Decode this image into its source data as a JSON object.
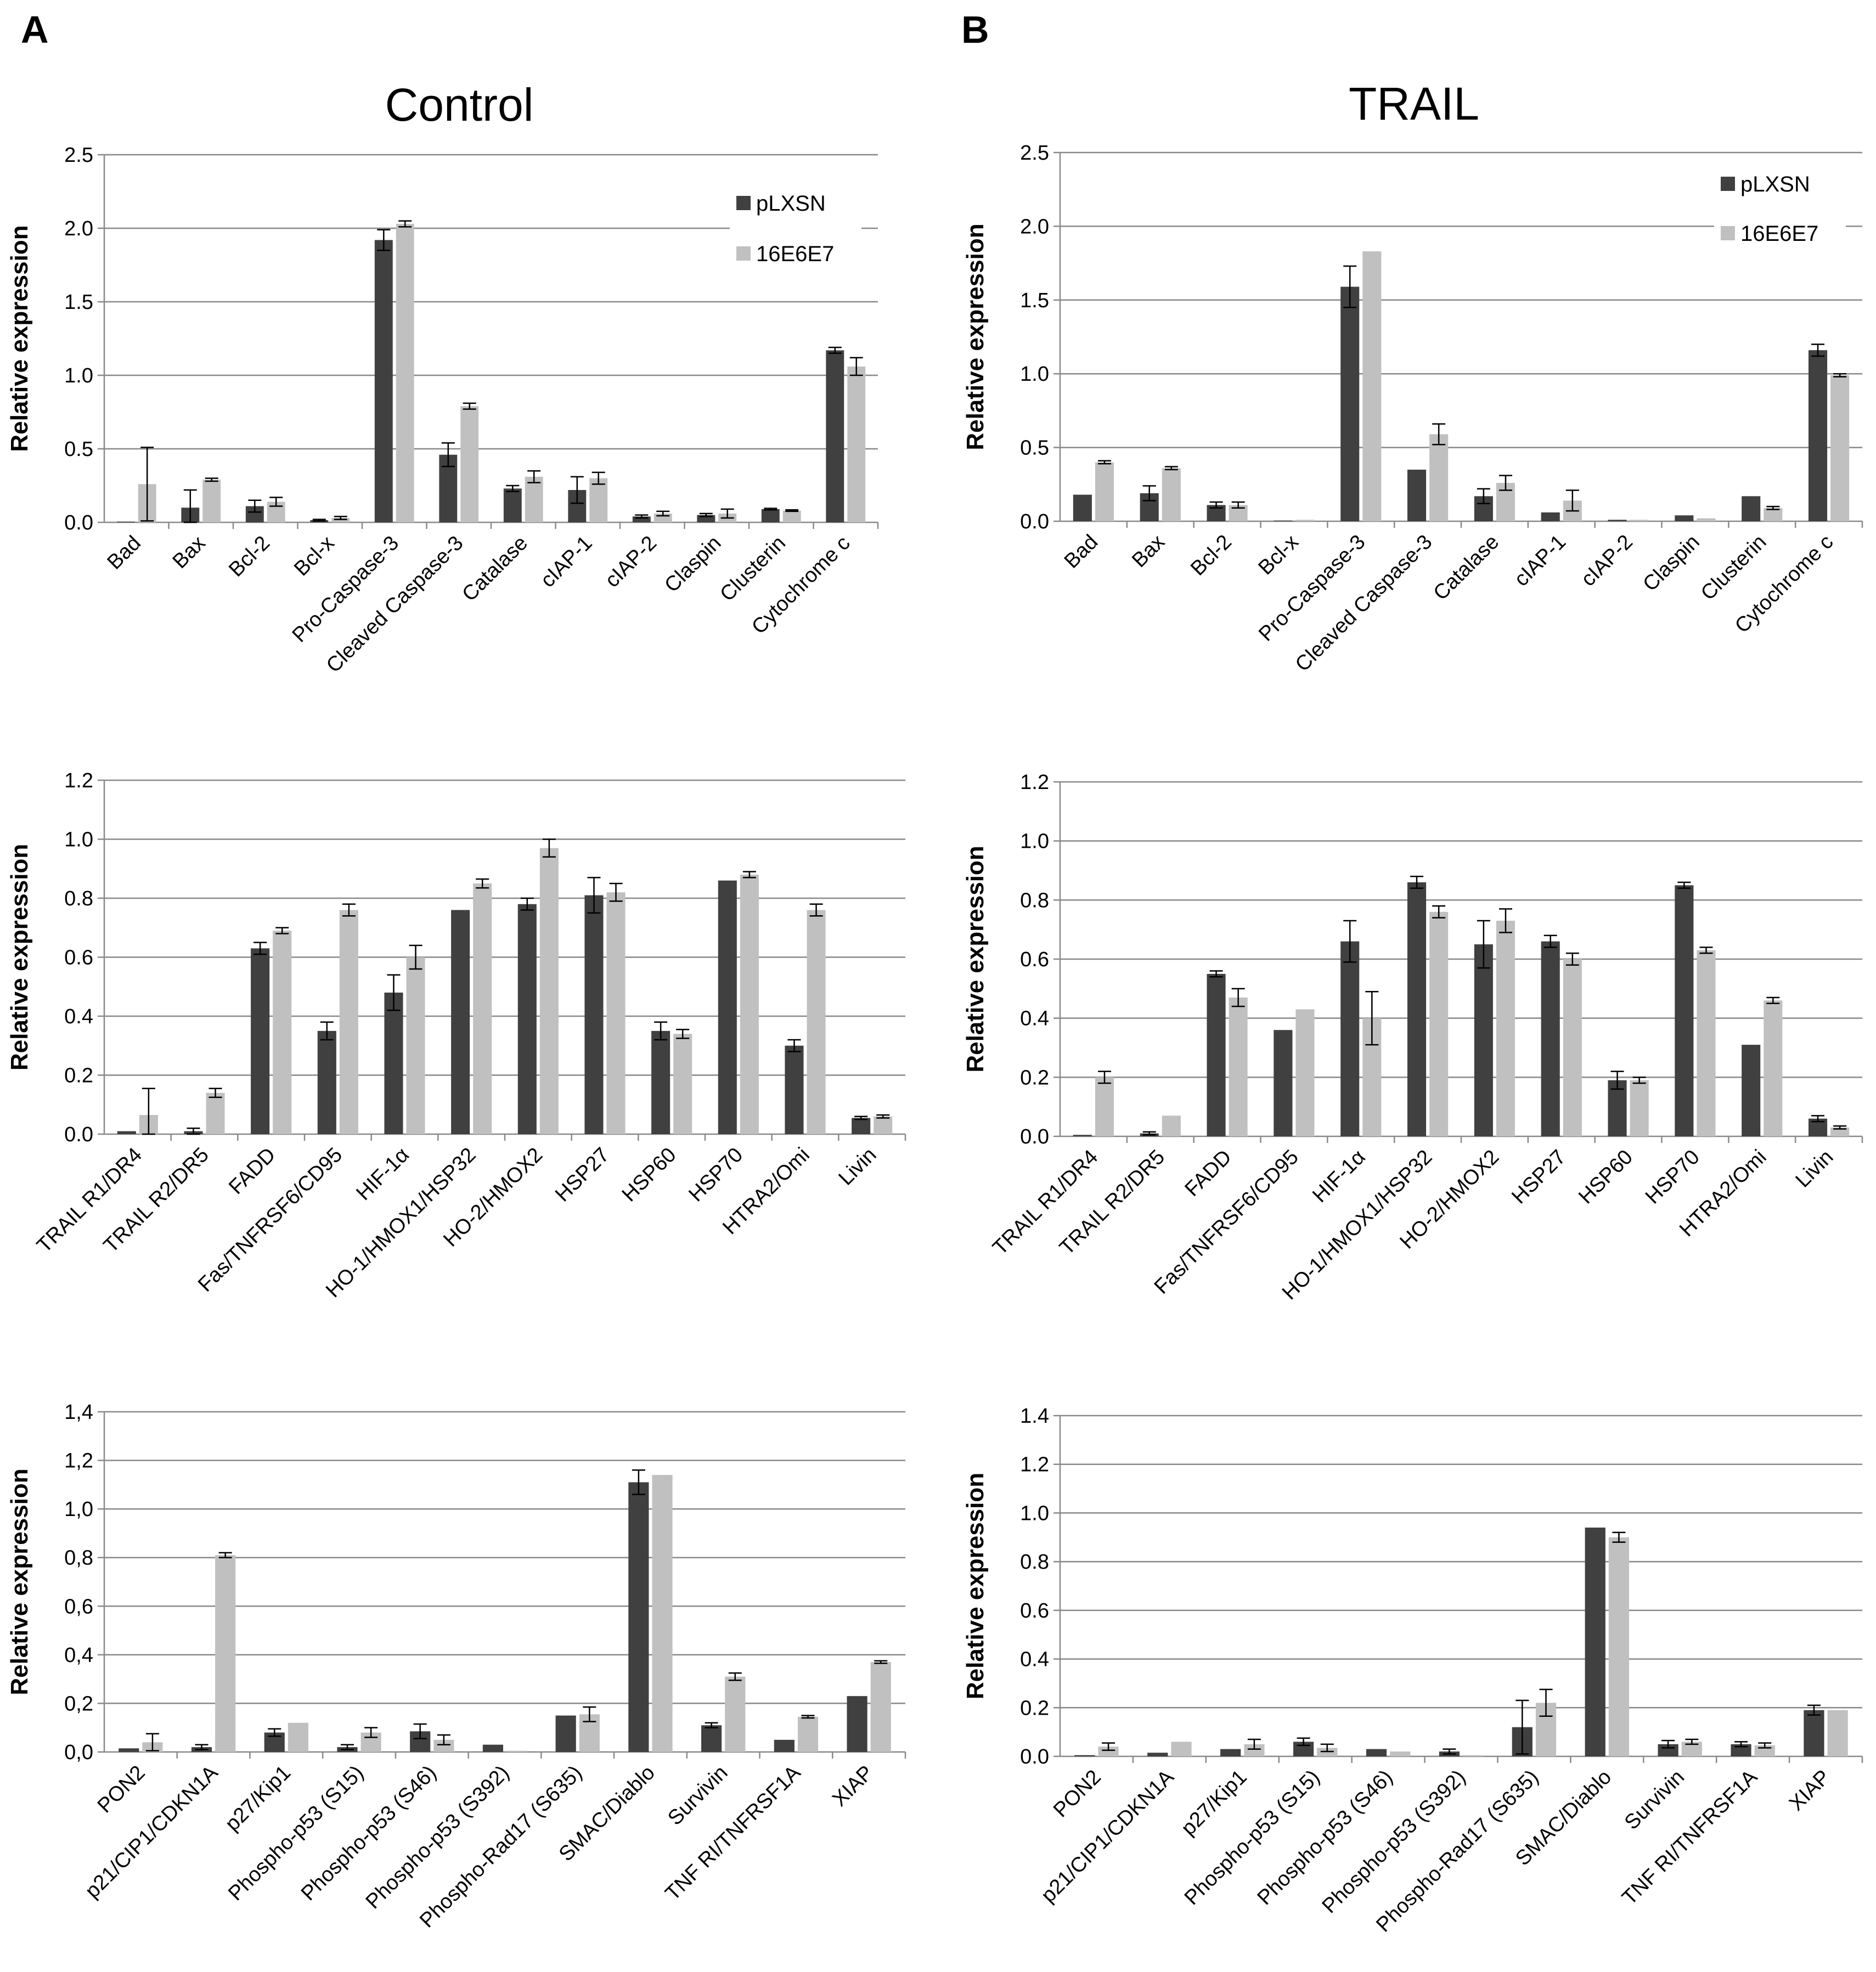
{
  "panels": [
    {
      "letter": "A",
      "title": "Control"
    },
    {
      "letter": "B",
      "title": "TRAIL"
    }
  ],
  "legend": {
    "entries": [
      {
        "name": "pLXSN",
        "color": "#404040"
      },
      {
        "name": "16E6E7",
        "color": "#c0c0c0"
      }
    ]
  },
  "colors": {
    "pLXSN": "#404040",
    "16E6E7": "#c0c0c0",
    "grid": "#898989",
    "axis": "#898989",
    "text": "#000000"
  },
  "chart_data": [
    {
      "type": "bar",
      "panel": "A",
      "title": "Control",
      "row": 1,
      "ylabel": "Relative expression",
      "ylim": [
        0,
        2.5
      ],
      "yticks": [
        "0.0",
        "0.5",
        "1.0",
        "1.5",
        "2.0",
        "2.5"
      ],
      "categories": [
        "Bad",
        "Bax",
        "Bcl-2",
        "Bcl-x",
        "Pro-Caspase-3",
        "Cleaved Caspase-3",
        "Catalase",
        "cIAP-1",
        "cIAP-2",
        "Claspin",
        "Clusterin",
        "Cytochrome c"
      ],
      "series": [
        {
          "name": "pLXSN",
          "values": [
            0.005,
            0.1,
            0.11,
            0.015,
            1.92,
            0.46,
            0.23,
            0.22,
            0.04,
            0.05,
            0.09,
            1.17
          ],
          "errors": [
            0,
            0.12,
            0.04,
            0.005,
            0.07,
            0.08,
            0.02,
            0.09,
            0.01,
            0.01,
            0.005,
            0.02
          ]
        },
        {
          "name": "16E6E7",
          "values": [
            0.26,
            0.29,
            0.14,
            0.03,
            2.03,
            0.79,
            0.31,
            0.3,
            0.06,
            0.06,
            0.08,
            1.06
          ],
          "errors": [
            0.25,
            0.01,
            0.03,
            0.01,
            0.02,
            0.02,
            0.04,
            0.04,
            0.015,
            0.03,
            0.005,
            0.06
          ]
        }
      ],
      "legend_shown": true
    },
    {
      "type": "bar",
      "panel": "B",
      "title": "TRAIL",
      "row": 1,
      "ylabel": "Relative expression",
      "ylim": [
        0,
        2.5
      ],
      "yticks": [
        "0.0",
        "0.5",
        "1.0",
        "1.5",
        "2.0",
        "2.5"
      ],
      "categories": [
        "Bad",
        "Bax",
        "Bcl-2",
        "Bcl-x",
        "Pro-Caspase-3",
        "Cleaved Caspase-3",
        "Catalase",
        "cIAP-1",
        "cIAP-2",
        "Claspin",
        "Clusterin",
        "Cytochrome c"
      ],
      "series": [
        {
          "name": "pLXSN",
          "values": [
            0.18,
            0.19,
            0.11,
            0.005,
            1.59,
            0.35,
            0.17,
            0.06,
            0.01,
            0.04,
            0.17,
            1.16
          ],
          "errors": [
            0,
            0.05,
            0.02,
            0,
            0.14,
            0,
            0.05,
            0,
            0,
            0,
            0,
            0.04
          ]
        },
        {
          "name": "16E6E7",
          "values": [
            0.4,
            0.36,
            0.11,
            0.01,
            1.83,
            0.59,
            0.26,
            0.14,
            0.01,
            0.02,
            0.09,
            0.99
          ],
          "errors": [
            0.01,
            0.01,
            0.02,
            0,
            0,
            0.07,
            0.05,
            0.07,
            0,
            0,
            0.01,
            0.01
          ]
        }
      ],
      "legend_shown": true
    },
    {
      "type": "bar",
      "panel": "A",
      "title": "Control",
      "row": 2,
      "ylabel": "Relative expression",
      "ylim": [
        0,
        1.2
      ],
      "yticks": [
        "0.0",
        "0.2",
        "0.4",
        "0.6",
        "0.8",
        "1.0",
        "1.2"
      ],
      "categories": [
        "TRAIL R1/DR4",
        "TRAIL R2/DR5",
        "FADD",
        "Fas/TNFRSF6/CD95",
        "HIF-1α",
        "HO-1/HMOX1/HSP32",
        "HO-2/HMOX2",
        "HSP27",
        "HSP60",
        "HSP70",
        "HTRA2/Omi",
        "Livin"
      ],
      "series": [
        {
          "name": "pLXSN",
          "values": [
            0.01,
            0.01,
            0.63,
            0.35,
            0.48,
            0.76,
            0.78,
            0.81,
            0.35,
            0.86,
            0.3,
            0.055
          ],
          "errors": [
            0,
            0.01,
            0.02,
            0.03,
            0.06,
            0,
            0.02,
            0.06,
            0.03,
            0,
            0.02,
            0.005
          ]
        },
        {
          "name": "16E6E7",
          "values": [
            0.065,
            0.14,
            0.69,
            0.76,
            0.6,
            0.85,
            0.97,
            0.82,
            0.34,
            0.88,
            0.76,
            0.06
          ],
          "errors": [
            0.09,
            0.015,
            0.01,
            0.02,
            0.04,
            0.015,
            0.03,
            0.03,
            0.015,
            0.01,
            0.02,
            0.005
          ]
        }
      ],
      "legend_shown": false
    },
    {
      "type": "bar",
      "panel": "B",
      "title": "TRAIL",
      "row": 2,
      "ylabel": "Relative expression",
      "ylim": [
        0,
        1.2
      ],
      "yticks": [
        "0.0",
        "0.2",
        "0.4",
        "0.6",
        "0.8",
        "1.0",
        "1.2"
      ],
      "categories": [
        "TRAIL R1/DR4",
        "TRAIL R2/DR5",
        "FADD",
        "Fas/TNFRSF6/CD95",
        "HIF-1α",
        "HO-1/HMOX1/HSP32",
        "HO-2/HMOX2",
        "HSP27",
        "HSP60",
        "HSP70",
        "HTRA2/Omi",
        "Livin"
      ],
      "series": [
        {
          "name": "pLXSN",
          "values": [
            0.005,
            0.01,
            0.55,
            0.36,
            0.66,
            0.86,
            0.65,
            0.66,
            0.19,
            0.85,
            0.31,
            0.06
          ],
          "errors": [
            0,
            0.005,
            0.01,
            0,
            0.07,
            0.02,
            0.08,
            0.02,
            0.03,
            0.01,
            0,
            0.01
          ]
        },
        {
          "name": "16E6E7",
          "values": [
            0.2,
            0.07,
            0.47,
            0.43,
            0.4,
            0.76,
            0.73,
            0.6,
            0.19,
            0.63,
            0.46,
            0.03
          ],
          "errors": [
            0.02,
            0,
            0.03,
            0,
            0.09,
            0.02,
            0.04,
            0.02,
            0.01,
            0.01,
            0.01,
            0.005
          ]
        }
      ],
      "legend_shown": false
    },
    {
      "type": "bar",
      "panel": "A",
      "title": "Control",
      "row": 3,
      "ylabel": "Relative expression",
      "ylim": [
        0,
        1.4
      ],
      "yticks": [
        "0,0",
        "0,2",
        "0,4",
        "0,6",
        "0,8",
        "1,0",
        "1,2",
        "1,4"
      ],
      "categories": [
        "PON2",
        "p21/CIP1/CDKN1A",
        "p27/Kip1",
        "Phospho-p53 (S15)",
        "Phospho-p53 (S46)",
        "Phospho-p53 (S392)",
        "Phospho-Rad17 (S635)",
        "SMAC/Diablo",
        "Survivin",
        "TNF RI/TNFRSF1A",
        "XIAP"
      ],
      "series": [
        {
          "name": "pLXSN",
          "values": [
            0.015,
            0.02,
            0.08,
            0.02,
            0.085,
            0.03,
            0.15,
            1.11,
            0.11,
            0.05,
            0.23
          ],
          "errors": [
            0,
            0.01,
            0.015,
            0.01,
            0.03,
            0,
            0,
            0.05,
            0.01,
            0,
            0
          ]
        },
        {
          "name": "16E6E7",
          "values": [
            0.04,
            0.81,
            0.12,
            0.08,
            0.05,
            0.005,
            0.155,
            1.14,
            0.31,
            0.145,
            0.37
          ],
          "errors": [
            0.035,
            0.01,
            0,
            0.02,
            0.02,
            0,
            0.03,
            0,
            0.015,
            0.005,
            0.005
          ]
        }
      ],
      "legend_shown": false
    },
    {
      "type": "bar",
      "panel": "B",
      "title": "TRAIL",
      "row": 3,
      "ylabel": "Relative expression",
      "ylim": [
        0,
        1.4
      ],
      "yticks": [
        "0.0",
        "0.2",
        "0.4",
        "0.6",
        "0.8",
        "1.0",
        "1.2",
        "1.4"
      ],
      "categories": [
        "PON2",
        "p21/CIP1/CDKN1A",
        "p27/Kip1",
        "Phospho-p53 (S15)",
        "Phospho-p53 (S46)",
        "Phospho-p53 (S392)",
        "Phospho-Rad17 (S635)",
        "SMAC/Diablo",
        "Survivin",
        "TNF RI/TNFRSF1A",
        "XIAP"
      ],
      "series": [
        {
          "name": "pLXSN",
          "values": [
            0.005,
            0.015,
            0.03,
            0.06,
            0.03,
            0.02,
            0.12,
            0.94,
            0.05,
            0.05,
            0.19
          ],
          "errors": [
            0,
            0,
            0,
            0.015,
            0,
            0.01,
            0.11,
            0,
            0.015,
            0.01,
            0.02
          ]
        },
        {
          "name": "16E6E7",
          "values": [
            0.04,
            0.06,
            0.05,
            0.035,
            0.02,
            0.005,
            0.22,
            0.9,
            0.06,
            0.045,
            0.19
          ],
          "errors": [
            0.015,
            0,
            0.02,
            0.015,
            0,
            0,
            0.055,
            0.02,
            0.01,
            0.01,
            0
          ]
        }
      ],
      "legend_shown": false
    }
  ]
}
